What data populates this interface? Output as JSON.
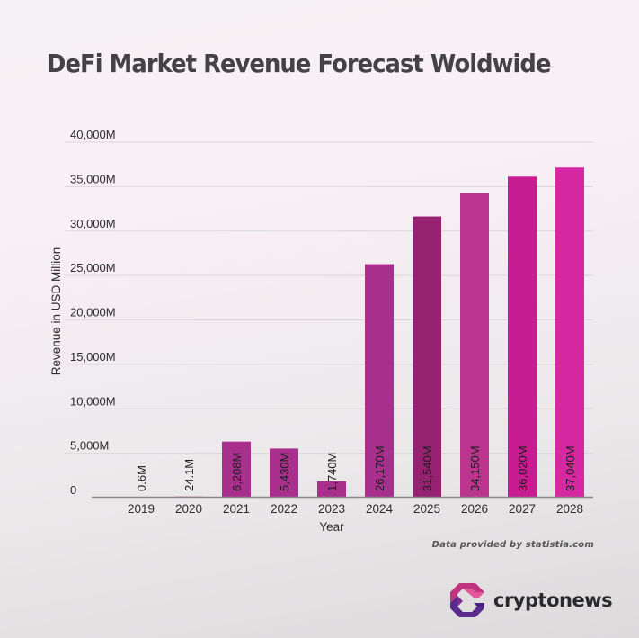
{
  "header": {
    "title": "DeFi Market Revenue Forecast Woldwide"
  },
  "footer": {
    "source": "Data provided by statistia.com",
    "brand": "cryptonews",
    "brand_icon": "cryptonews-logo-icon"
  },
  "chart_data": {
    "type": "bar",
    "title": "DeFi Market Revenue Forecast Woldwide",
    "xlabel": "Year",
    "ylabel": "Revenue in USD Million",
    "ylim": [
      0,
      40000
    ],
    "grid": true,
    "y_ticks": [
      0,
      5000,
      10000,
      15000,
      20000,
      25000,
      30000,
      35000,
      40000
    ],
    "y_tick_labels": [
      "0",
      "5,000M",
      "10,000M",
      "15,000M",
      "20,000M",
      "25,000M",
      "30,000M",
      "35,000M",
      "40,000M"
    ],
    "categories": [
      "2019",
      "2020",
      "2021",
      "2022",
      "2023",
      "2024",
      "2025",
      "2026",
      "2027",
      "2028"
    ],
    "values": [
      0.6,
      24.1,
      6208,
      5430,
      1740,
      26170,
      31540,
      34150,
      36020,
      37040
    ],
    "data_labels": [
      "0.6M",
      "24.1M",
      "6,208M",
      "5,430M",
      "1,740M",
      "26,170M",
      "31,540M",
      "34,150M",
      "36,020M",
      "37,040M"
    ],
    "colors": [
      "#a8308c",
      "#a8308c",
      "#a8308c",
      "#a8308c",
      "#a8308c",
      "#a8308c",
      "#952270",
      "#bb358f",
      "#c81c92",
      "#d628a3"
    ]
  }
}
